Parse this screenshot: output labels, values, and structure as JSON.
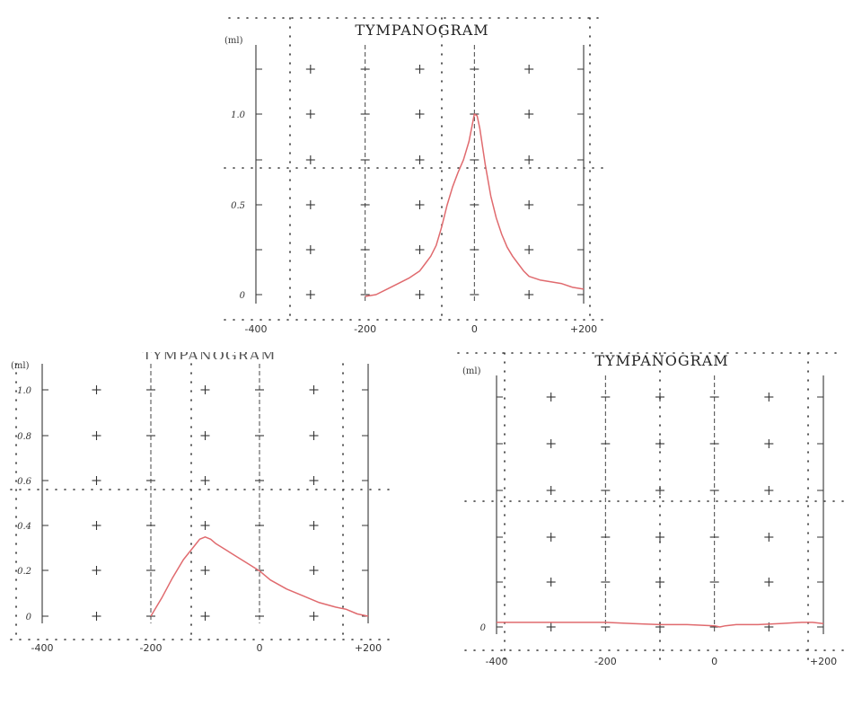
{
  "chart_data": [
    {
      "type": "line",
      "title": "TYMPANOGRAM",
      "y_unit": "(ml)",
      "xlabel": "",
      "x_ticks": [
        "-400",
        "-200",
        "0",
        "+200"
      ],
      "y_ticks": [
        "0",
        "0.5",
        "1.0"
      ],
      "xlim": [
        -400,
        200
      ],
      "ylim": [
        0,
        1.2
      ],
      "grid": true,
      "series": [
        {
          "color": "#e06a6e",
          "x": [
            -200,
            -180,
            -160,
            -140,
            -120,
            -100,
            -90,
            -80,
            -70,
            -60,
            -50,
            -40,
            -30,
            -20,
            -10,
            0,
            5,
            10,
            20,
            30,
            40,
            50,
            60,
            70,
            80,
            90,
            100,
            120,
            140,
            160,
            180,
            200
          ],
          "y": [
            0.0,
            0.01,
            0.04,
            0.07,
            0.1,
            0.14,
            0.18,
            0.22,
            0.28,
            0.38,
            0.5,
            0.6,
            0.68,
            0.75,
            0.85,
            1.0,
            0.99,
            0.92,
            0.72,
            0.55,
            0.43,
            0.34,
            0.27,
            0.22,
            0.18,
            0.14,
            0.11,
            0.09,
            0.08,
            0.07,
            0.05,
            0.04
          ]
        }
      ]
    },
    {
      "type": "line",
      "title": "",
      "y_unit": "(ml)",
      "xlabel": "",
      "x_ticks": [
        "-400",
        "-200",
        "0",
        "+200"
      ],
      "y_ticks": [
        "0",
        "0.2",
        "0.4",
        "0.6",
        "0.8",
        "1.0"
      ],
      "xlim": [
        -400,
        200
      ],
      "ylim": [
        0,
        1.0
      ],
      "grid": true,
      "series": [
        {
          "color": "#e06a6e",
          "x": [
            -200,
            -180,
            -160,
            -140,
            -120,
            -110,
            -100,
            -90,
            -80,
            -60,
            -40,
            -20,
            0,
            20,
            50,
            80,
            110,
            140,
            160,
            180,
            200
          ],
          "y": [
            0.0,
            0.08,
            0.17,
            0.25,
            0.31,
            0.34,
            0.35,
            0.34,
            0.32,
            0.29,
            0.26,
            0.23,
            0.2,
            0.16,
            0.12,
            0.09,
            0.06,
            0.04,
            0.03,
            0.01,
            0.0
          ]
        }
      ]
    },
    {
      "type": "line",
      "title": "TYMPANOGRAM",
      "y_unit": "(ml)",
      "xlabel": "",
      "x_ticks": [
        "-400",
        "-200",
        "0",
        "+200"
      ],
      "y_ticks": [
        "0"
      ],
      "xlim": [
        -400,
        200
      ],
      "ylim": [
        0,
        1.0
      ],
      "grid": true,
      "series": [
        {
          "color": "#e06a6e",
          "x": [
            -400,
            -350,
            -300,
            -250,
            -200,
            -150,
            -100,
            -50,
            0,
            10,
            20,
            40,
            80,
            120,
            160,
            180,
            200
          ],
          "y": [
            0.02,
            0.02,
            0.02,
            0.02,
            0.02,
            0.015,
            0.01,
            0.01,
            0.005,
            0.0,
            0.005,
            0.01,
            0.01,
            0.015,
            0.02,
            0.02,
            0.015
          ]
        }
      ]
    }
  ]
}
